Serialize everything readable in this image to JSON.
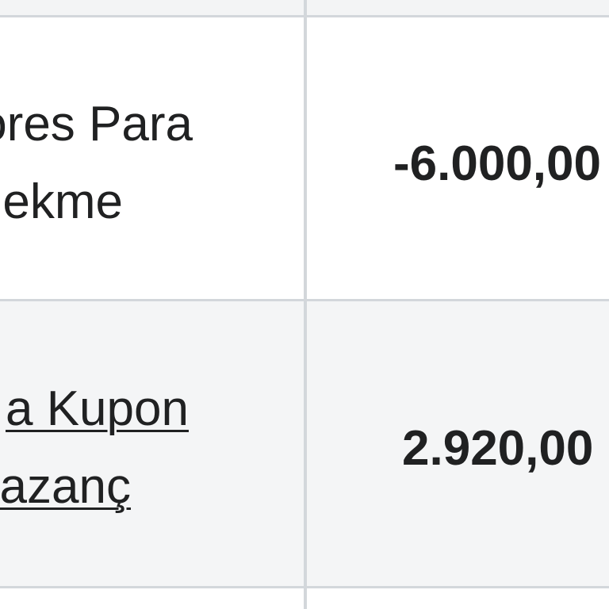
{
  "table": {
    "rows": [
      {
        "description_lines": [
          "ores Para",
          "ekme"
        ],
        "amount": "-6.000,00",
        "linked": false
      },
      {
        "description_lines": [
          "a Kupon",
          "azanç"
        ],
        "amount": "2.920,00",
        "linked": true
      }
    ]
  }
}
